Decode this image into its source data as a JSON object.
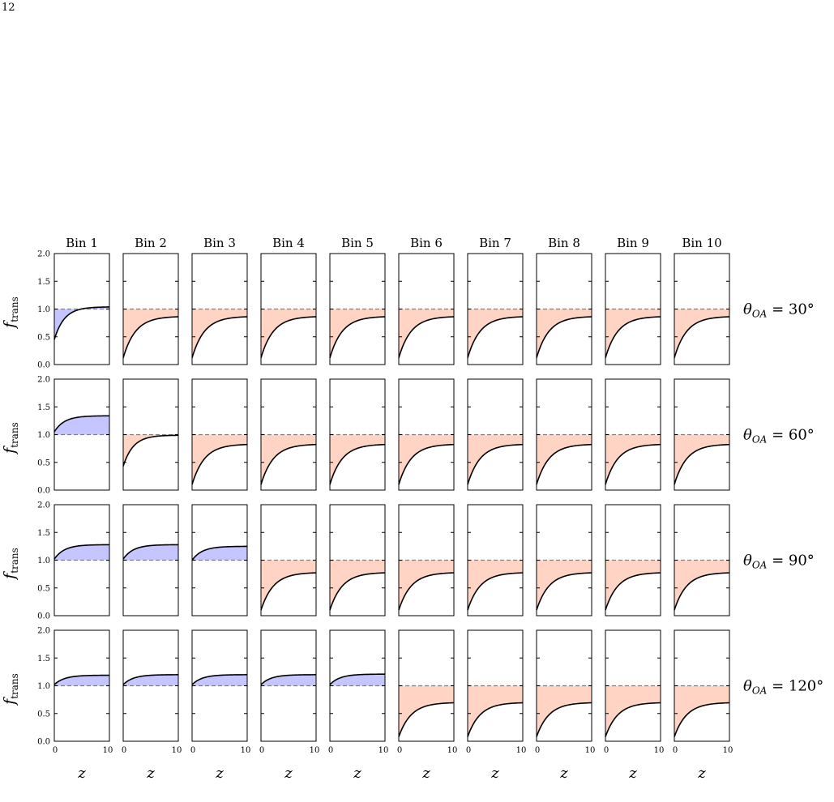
{
  "page": {
    "number": "12"
  },
  "chart_data": {
    "type": "line",
    "xlabel": "z",
    "ylabel": "f",
    "ylabel_subscript": "trans",
    "xlim": [
      0,
      10
    ],
    "ylim": [
      0.0,
      2.0
    ],
    "x_ticks": [
      "0",
      "10"
    ],
    "y_ticks": [
      "0.0",
      "0.5",
      "1.0",
      "1.5",
      "2.0"
    ],
    "reference_line_y": 1.0,
    "grid": false,
    "colors": {
      "above_fill": "#c5c5ff",
      "below_fill": "#ffd4c4",
      "curve": "#000000",
      "reference": "#808080"
    },
    "columns": [
      "Bin 1",
      "Bin 2",
      "Bin 3",
      "Bin 4",
      "Bin 5",
      "Bin 6",
      "Bin 7",
      "Bin 8",
      "Bin 9",
      "Bin 10"
    ],
    "rows": [
      {
        "label_symbol": "θ",
        "label_subscript": "OA",
        "label_value": " = 30°",
        "curves": [
          {
            "y0": 0.45,
            "yinf": 1.04,
            "k": 0.55
          },
          {
            "y0": 0.12,
            "yinf": 0.87,
            "k": 0.45
          },
          {
            "y0": 0.12,
            "yinf": 0.87,
            "k": 0.45
          },
          {
            "y0": 0.12,
            "yinf": 0.87,
            "k": 0.45
          },
          {
            "y0": 0.12,
            "yinf": 0.87,
            "k": 0.45
          },
          {
            "y0": 0.12,
            "yinf": 0.87,
            "k": 0.45
          },
          {
            "y0": 0.12,
            "yinf": 0.87,
            "k": 0.45
          },
          {
            "y0": 0.12,
            "yinf": 0.87,
            "k": 0.45
          },
          {
            "y0": 0.12,
            "yinf": 0.87,
            "k": 0.45
          },
          {
            "y0": 0.12,
            "yinf": 0.87,
            "k": 0.45
          }
        ]
      },
      {
        "label_symbol": "θ",
        "label_subscript": "OA",
        "label_value": " = 60°",
        "curves": [
          {
            "y0": 1.05,
            "yinf": 1.34,
            "k": 0.55
          },
          {
            "y0": 0.43,
            "yinf": 0.99,
            "k": 0.55
          },
          {
            "y0": 0.1,
            "yinf": 0.83,
            "k": 0.45
          },
          {
            "y0": 0.1,
            "yinf": 0.83,
            "k": 0.45
          },
          {
            "y0": 0.1,
            "yinf": 0.83,
            "k": 0.45
          },
          {
            "y0": 0.1,
            "yinf": 0.83,
            "k": 0.45
          },
          {
            "y0": 0.1,
            "yinf": 0.83,
            "k": 0.45
          },
          {
            "y0": 0.1,
            "yinf": 0.83,
            "k": 0.45
          },
          {
            "y0": 0.1,
            "yinf": 0.83,
            "k": 0.45
          },
          {
            "y0": 0.1,
            "yinf": 0.83,
            "k": 0.45
          }
        ]
      },
      {
        "label_symbol": "θ",
        "label_subscript": "OA",
        "label_value": " = 90°",
        "curves": [
          {
            "y0": 1.02,
            "yinf": 1.28,
            "k": 0.55
          },
          {
            "y0": 1.02,
            "yinf": 1.28,
            "k": 0.55
          },
          {
            "y0": 1.0,
            "yinf": 1.25,
            "k": 0.55
          },
          {
            "y0": 0.1,
            "yinf": 0.78,
            "k": 0.45
          },
          {
            "y0": 0.1,
            "yinf": 0.78,
            "k": 0.45
          },
          {
            "y0": 0.1,
            "yinf": 0.78,
            "k": 0.45
          },
          {
            "y0": 0.1,
            "yinf": 0.78,
            "k": 0.45
          },
          {
            "y0": 0.1,
            "yinf": 0.78,
            "k": 0.45
          },
          {
            "y0": 0.1,
            "yinf": 0.78,
            "k": 0.45
          },
          {
            "y0": 0.1,
            "yinf": 0.78,
            "k": 0.45
          }
        ]
      },
      {
        "label_symbol": "θ",
        "label_subscript": "OA",
        "label_value": " = 120°",
        "curves": [
          {
            "y0": 1.02,
            "yinf": 1.19,
            "k": 0.55
          },
          {
            "y0": 1.02,
            "yinf": 1.2,
            "k": 0.55
          },
          {
            "y0": 1.02,
            "yinf": 1.2,
            "k": 0.55
          },
          {
            "y0": 1.02,
            "yinf": 1.2,
            "k": 0.55
          },
          {
            "y0": 1.02,
            "yinf": 1.21,
            "k": 0.55
          },
          {
            "y0": 0.08,
            "yinf": 0.7,
            "k": 0.45
          },
          {
            "y0": 0.08,
            "yinf": 0.7,
            "k": 0.45
          },
          {
            "y0": 0.08,
            "yinf": 0.7,
            "k": 0.45
          },
          {
            "y0": 0.08,
            "yinf": 0.7,
            "k": 0.45
          },
          {
            "y0": 0.08,
            "yinf": 0.7,
            "k": 0.45
          }
        ]
      }
    ]
  }
}
